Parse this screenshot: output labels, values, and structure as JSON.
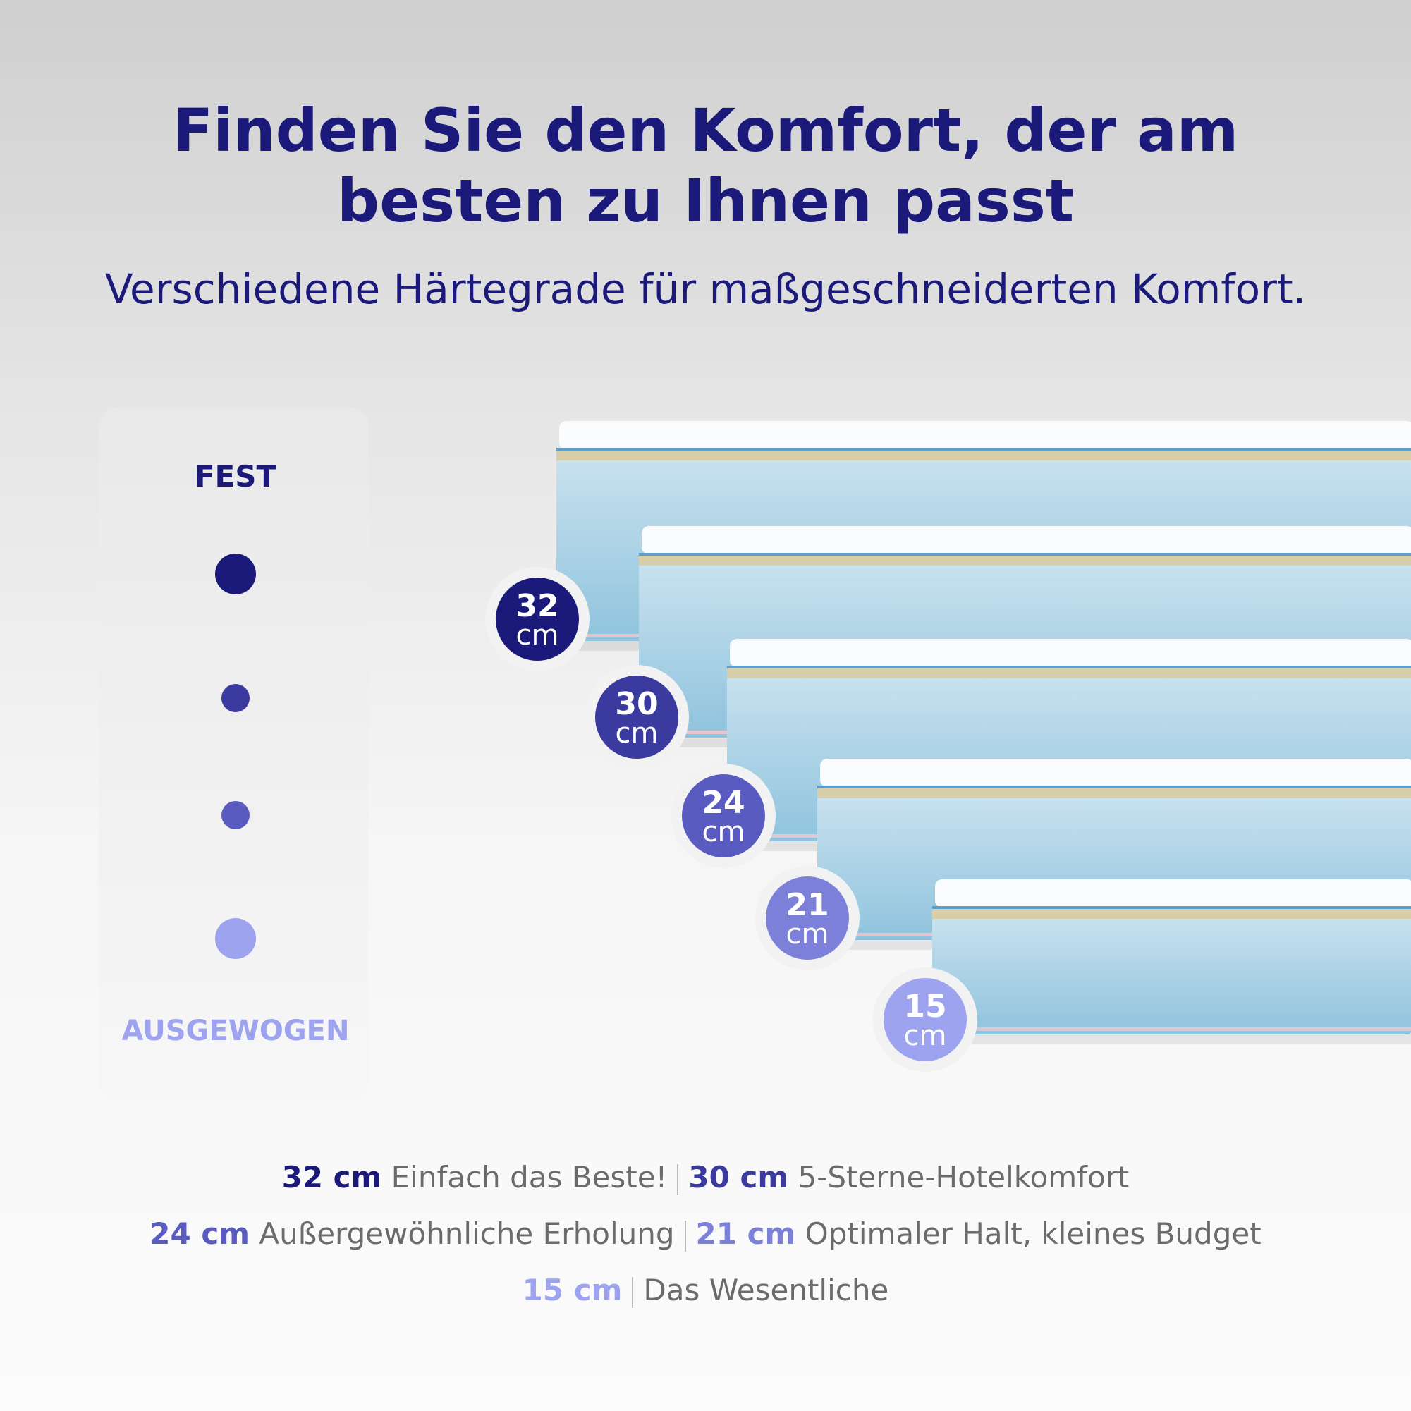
{
  "header": {
    "title_line1": "Finden Sie den Komfort, der am",
    "title_line2": "besten zu Ihnen passt",
    "subtitle": "Verschiedene Härtegrade für maßgeschneiderten Komfort."
  },
  "scale": {
    "top_label": "FEST",
    "bottom_label": "AUSGEWOGEN"
  },
  "mattresses": [
    {
      "height": "32",
      "unit": "cm"
    },
    {
      "height": "30",
      "unit": "cm"
    },
    {
      "height": "24",
      "unit": "cm"
    },
    {
      "height": "21",
      "unit": "cm"
    },
    {
      "height": "15",
      "unit": "cm"
    }
  ],
  "legend": [
    [
      {
        "size": "32 cm",
        "text": "Einfach das Beste!"
      },
      {
        "size": "30 cm",
        "text": "5-Sterne-Hotelkomfort"
      }
    ],
    [
      {
        "size": "24 cm",
        "text": "Außergewöhnliche Erholung"
      },
      {
        "size": "21 cm",
        "text": "Optimaler Halt, kleines Budget"
      }
    ],
    [
      {
        "size": "15 cm",
        "text": "Das Wesentliche"
      }
    ]
  ]
}
